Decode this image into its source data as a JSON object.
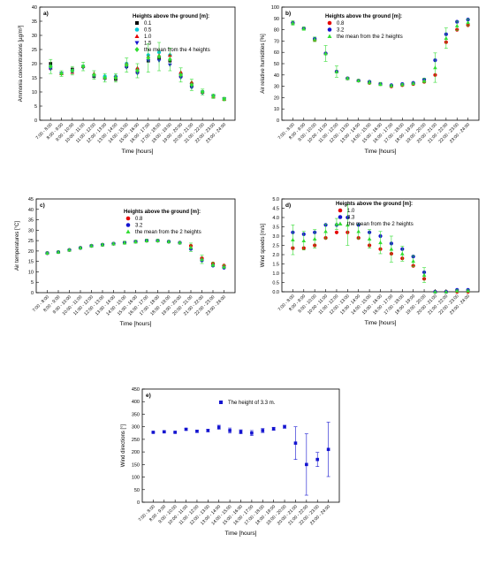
{
  "chart_data": [
    {
      "type": "scatter",
      "panel_label": "a)",
      "title": "",
      "xlabel": "Time [hours]",
      "ylabel": "Ammonia concentrations [µg/m³]",
      "ylim": [
        0,
        40
      ],
      "yticks": [
        0,
        5,
        10,
        15,
        20,
        25,
        30,
        35,
        40
      ],
      "categories": [
        "7:00 - 8:00",
        "8:00 - 9:00",
        "9:00 - 10:00",
        "10:00 - 11:00",
        "11:00 - 12:00",
        "12:00 - 13:00",
        "13:00 - 14:00",
        "14:00 - 15:00",
        "15:00 - 16:00",
        "16:00 - 17:00",
        "17:00 - 18:00",
        "18:00 - 19:00",
        "19:00 - 20:00",
        "20:00 - 21:00",
        "21:00 - 22:00",
        "22:00 - 23:00",
        "23:00 - 24:00"
      ],
      "legend_title": "Heights above the ground [m]:",
      "legend_position": "top-right",
      "series": [
        {
          "name": "0.1",
          "color": "#000000",
          "marker": "square",
          "values": [
            20,
            16.5,
            18,
            19,
            15.5,
            15,
            14.5,
            19,
            17,
            21,
            22,
            21,
            15.5,
            12,
            10,
            8.5,
            7.5
          ]
        },
        {
          "name": "0.5",
          "color": "#00c8d8",
          "marker": "circle",
          "values": [
            19,
            16.5,
            17.5,
            19,
            16,
            15.5,
            15.5,
            20,
            18,
            23,
            24,
            23,
            16.5,
            13,
            10,
            8.5,
            7.5
          ]
        },
        {
          "name": "1.0",
          "color": "#e60000",
          "marker": "triangle-up",
          "values": [
            18.5,
            16.5,
            17,
            19,
            16.5,
            15,
            15.5,
            20,
            18.5,
            22.5,
            23,
            23,
            17,
            13.5,
            10,
            8.5,
            7.5
          ]
        },
        {
          "name": "1.5",
          "color": "#1414d0",
          "marker": "triangle-down",
          "values": [
            18,
            16.5,
            17,
            18.5,
            15.5,
            14.5,
            15,
            18.5,
            16.5,
            21,
            21,
            19.5,
            15,
            11.5,
            9.5,
            8.5,
            7.5
          ]
        },
        {
          "name": "the mean from the 4 heights",
          "color": "#33dd33",
          "marker": "diamond",
          "values": [
            19,
            16.5,
            17.5,
            19,
            16,
            15,
            15,
            19.5,
            17.5,
            22,
            22.5,
            21.5,
            16,
            12.5,
            10,
            8.5,
            7.5
          ],
          "errors": [
            2.5,
            1,
            1.5,
            1.5,
            1.5,
            1.5,
            1.5,
            2.5,
            2.5,
            5,
            5,
            4,
            2.5,
            2,
            1,
            0.8,
            0.6
          ]
        }
      ]
    },
    {
      "type": "scatter",
      "panel_label": "b)",
      "title": "",
      "xlabel": "Time [hours]",
      "ylabel": "Air relative humidities [%]",
      "ylim": [
        0,
        100
      ],
      "yticks": [
        0,
        10,
        20,
        30,
        40,
        50,
        60,
        70,
        80,
        90,
        100
      ],
      "categories": [
        "7:00 - 8:00",
        "8:00 - 9:00",
        "9:00 - 10:00",
        "10:00 - 11:00",
        "11:00 - 12:00",
        "12:00 - 13:00",
        "13:00 - 14:00",
        "14:00 - 15:00",
        "15:00 - 16:00",
        "16:00 - 17:00",
        "17:00 - 18:00",
        "18:00 - 19:00",
        "19:00 - 20:00",
        "20:00 - 21:00",
        "21:00 - 22:00",
        "22:00 - 23:00",
        "23:00 - 24:00"
      ],
      "legend_title": "Heights above the ground [m]:",
      "legend_position": "top-left",
      "series": [
        {
          "name": "0.8",
          "color": "#e60000",
          "marker": "circle",
          "values": [
            86,
            81,
            71,
            59,
            43,
            37,
            35,
            33,
            32,
            30,
            31,
            32,
            34,
            40,
            69,
            80,
            84
          ]
        },
        {
          "name": "3.2",
          "color": "#1414d0",
          "marker": "circle",
          "values": [
            86,
            81,
            72,
            59,
            43,
            37,
            35,
            34,
            32,
            31,
            32,
            33,
            36,
            53,
            76,
            87,
            89
          ]
        },
        {
          "name": "the mean from the 2 heights",
          "color": "#33dd33",
          "marker": "triangle-up",
          "values": [
            86,
            81,
            71.5,
            59,
            43,
            37,
            35,
            33.5,
            32,
            30.5,
            31.5,
            32.5,
            35,
            46.5,
            72.5,
            83.5,
            86.5
          ],
          "errors": [
            2,
            1.5,
            2,
            7,
            5,
            1,
            1,
            1.5,
            1.5,
            1,
            1,
            1,
            2,
            13,
            9,
            4,
            3
          ]
        }
      ]
    },
    {
      "type": "scatter",
      "panel_label": "c)",
      "title": "",
      "xlabel": "Time [hours]",
      "ylabel": "Air temperatures [°C]",
      "ylim": [
        0,
        45
      ],
      "yticks": [
        0,
        5,
        10,
        15,
        20,
        25,
        30,
        35,
        40,
        45
      ],
      "categories": [
        "7:00 - 8:00",
        "8:00 - 9:00",
        "9:00 - 10:00",
        "10:00 - 11:00",
        "11:00 - 12:00",
        "12:00 - 13:00",
        "13:00 - 14:00",
        "14:00 - 15:00",
        "15:00 - 16:00",
        "16:00 - 17:00",
        "17:00 - 18:00",
        "18:00 - 19:00",
        "19:00 - 20:00",
        "20:00 - 21:00",
        "21:00 - 22:00",
        "22:00 - 23:00",
        "23:00 - 24:00"
      ],
      "legend_title": "Heights above the ground [m]:",
      "legend_position": "top-center",
      "series": [
        {
          "name": "0.8",
          "color": "#e60000",
          "marker": "circle",
          "values": [
            19,
            19.5,
            20.5,
            21.5,
            22.5,
            23,
            23.5,
            24,
            24.5,
            25,
            25,
            24.5,
            24,
            22.5,
            16.5,
            14,
            13
          ]
        },
        {
          "name": "3.2",
          "color": "#1414d0",
          "marker": "circle",
          "values": [
            19,
            19.5,
            20.5,
            21.5,
            22.5,
            23,
            23.5,
            24,
            24.5,
            25,
            25,
            24.5,
            24,
            21,
            15.5,
            13,
            12
          ]
        },
        {
          "name": "the mean from the 2 heights",
          "color": "#33dd33",
          "marker": "triangle-up",
          "values": [
            19,
            19.5,
            20.5,
            21.5,
            22.5,
            23,
            23.5,
            24,
            24.5,
            25,
            25,
            24.5,
            24,
            21.8,
            16,
            13.5,
            12.5
          ],
          "errors": [
            0.5,
            0.5,
            0.5,
            0.5,
            0.6,
            0.6,
            0.6,
            0.7,
            0.7,
            0.7,
            0.6,
            0.5,
            0.5,
            2,
            2,
            1,
            0.8
          ]
        }
      ]
    },
    {
      "type": "scatter",
      "panel_label": "d)",
      "title": "",
      "xlabel": "Time [hours]",
      "ylabel": "Wind speeds [m/s]",
      "ylim": [
        0,
        5
      ],
      "yticks": [
        0.0,
        0.5,
        1.0,
        1.5,
        2.0,
        2.5,
        3.0,
        3.5,
        4.0,
        4.5,
        5.0
      ],
      "categories": [
        "7:00 - 8:00",
        "8:00 - 9:00",
        "9:00 - 10:00",
        "10:00 - 11:00",
        "11:00 - 12:00",
        "12:00 - 13:00",
        "13:00 - 14:00",
        "14:00 - 15:00",
        "15:00 - 16:00",
        "16:00 - 17:00",
        "17:00 - 18:00",
        "18:00 - 19:00",
        "19:00 - 20:00",
        "20:00 - 21:00",
        "21:00 - 22:00",
        "22:00 - 23:00",
        "23:00 - 24:00"
      ],
      "legend_title": "Heights above the ground [m]:",
      "legend_position": "top-right",
      "series": [
        {
          "name": "1.0",
          "color": "#e60000",
          "marker": "circle",
          "values": [
            2.35,
            2.35,
            2.5,
            2.9,
            3.2,
            3.2,
            2.9,
            2.5,
            2.3,
            2.05,
            1.8,
            1.4,
            0.7,
            0,
            0,
            0,
            0
          ]
        },
        {
          "name": "3.3",
          "color": "#1414d0",
          "marker": "circle",
          "values": [
            3.2,
            3.1,
            3.2,
            3.6,
            3.6,
            4.0,
            3.6,
            3.2,
            3.0,
            2.6,
            2.3,
            1.9,
            1.05,
            0,
            0,
            0.1,
            0.1
          ]
        },
        {
          "name": "the mean from the 2 heights",
          "color": "#33dd33",
          "marker": "triangle-up",
          "values": [
            2.8,
            2.75,
            2.85,
            3.25,
            3.65,
            3.6,
            3.25,
            2.85,
            2.65,
            2.3,
            2.05,
            1.65,
            0.9,
            0,
            0,
            0.05,
            0.05
          ],
          "errors": [
            0.8,
            0.5,
            0.5,
            0.4,
            0.3,
            1.1,
            0.4,
            0.5,
            0.6,
            0.7,
            0.4,
            0.3,
            0.4,
            0,
            0,
            0.05,
            0.05
          ]
        }
      ]
    },
    {
      "type": "scatter",
      "panel_label": "e)",
      "title": "",
      "xlabel": "Time [hours]",
      "ylabel": "Wind directions [°]",
      "ylim": [
        0,
        450
      ],
      "yticks": [
        0,
        50,
        100,
        150,
        200,
        250,
        300,
        350,
        400,
        450
      ],
      "categories": [
        "7:00 - 8:00",
        "8:00 - 9:00",
        "9:00 - 10:00",
        "10:00 - 11:00",
        "11:00 - 12:00",
        "12:00 - 13:00",
        "13:00 - 14:00",
        "14:00 - 15:00",
        "15:00 - 16:00",
        "16:00 - 17:00",
        "17:00 - 18:00",
        "18:00 - 19:00",
        "19:00 - 20:00",
        "20:00 - 21:00",
        "21:00 - 22:00",
        "22:00 - 23:00",
        "23:00 - 24:00"
      ],
      "legend_title": "",
      "legend_position": "top-center",
      "series": [
        {
          "name": "The height of 3.3 m.",
          "color": "#1414d0",
          "marker": "square",
          "values": [
            278,
            280,
            278,
            290,
            282,
            285,
            298,
            285,
            280,
            275,
            285,
            292,
            300,
            235,
            150,
            170,
            210
          ],
          "errors": [
            3,
            3,
            3,
            4,
            4,
            5,
            8,
            10,
            8,
            10,
            8,
            6,
            6,
            65,
            122,
            28,
            108
          ]
        }
      ]
    }
  ]
}
